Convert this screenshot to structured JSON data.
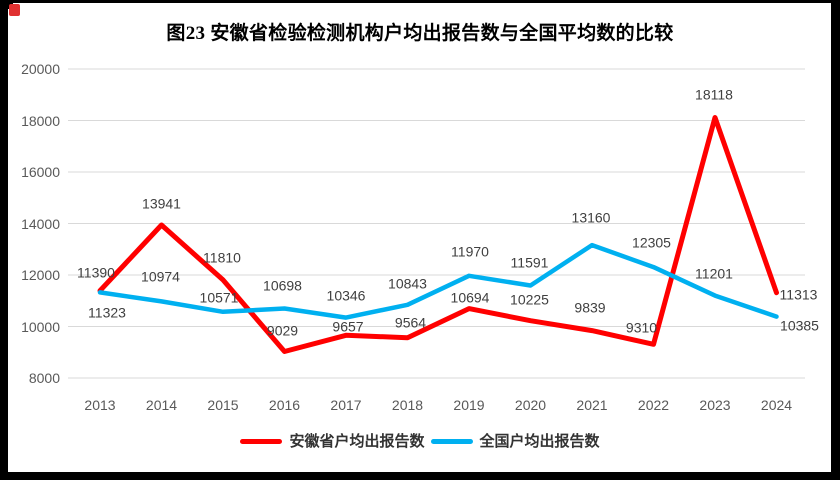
{
  "title": "图23 安徽省检验检测机构户均出报告数与全国平均数的比较",
  "colors": {
    "anhui_line": "#ff0000",
    "national_line": "#00b0f0",
    "gridline": "#d9d9d9",
    "axis_label": "#595959",
    "data_label": "#404040",
    "frame": "#000000",
    "corner_mark": "#e03131"
  },
  "chart_data": {
    "type": "line",
    "categories": [
      "2013",
      "2014",
      "2015",
      "2016",
      "2017",
      "2018",
      "2019",
      "2020",
      "2021",
      "2022",
      "2023",
      "2024"
    ],
    "series": [
      {
        "name": "安徽省户均出报告数",
        "color": "#ff0000",
        "values": [
          11390,
          13941,
          11810,
          9029,
          9657,
          9564,
          10694,
          10225,
          9839,
          9310,
          18118,
          11313
        ]
      },
      {
        "name": "全国户均出报告数",
        "color": "#00b0f0",
        "values": [
          11323,
          10974,
          10571,
          10698,
          10346,
          10843,
          11970,
          11591,
          13160,
          12305,
          11201,
          10385
        ]
      }
    ],
    "title": "图23 安徽省检验检测机构户均出报告数与全国平均数的比较",
    "xlabel": "",
    "ylabel": "",
    "ylim": [
      8000,
      20000
    ],
    "yticks": [
      20000,
      18000,
      16000,
      14000,
      12000,
      10000,
      8000
    ],
    "grid": true,
    "legend_position": "bottom",
    "data_labels_shown": true
  }
}
